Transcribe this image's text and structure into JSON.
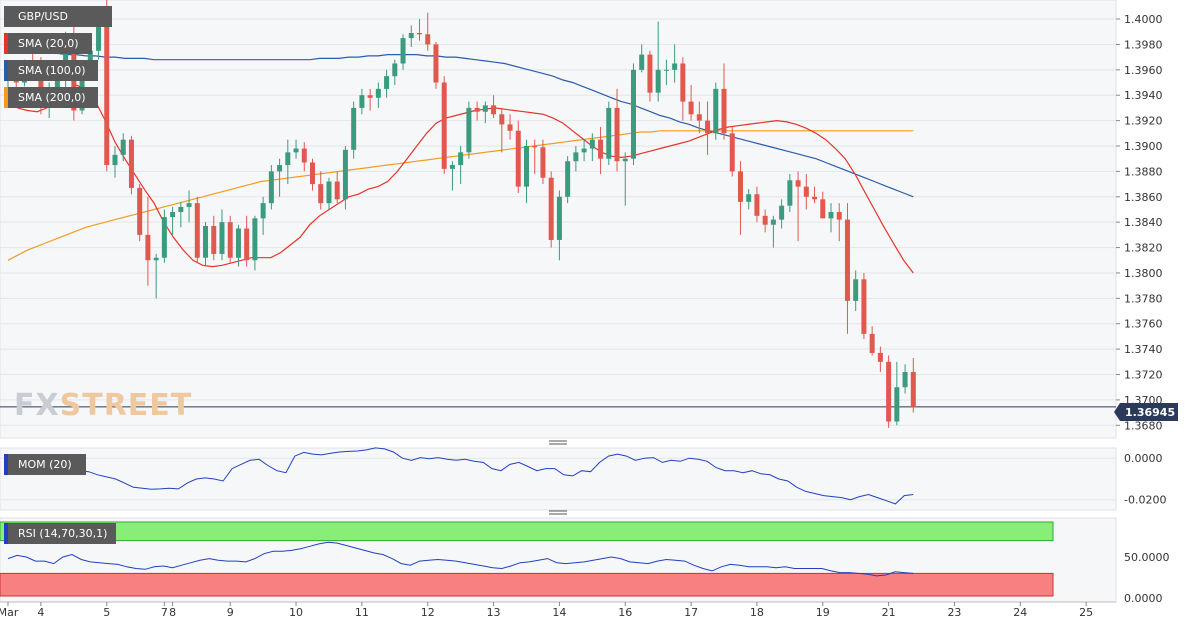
{
  "symbol": "GBP/USD",
  "watermark": {
    "part1": "FX",
    "part2": "STREET"
  },
  "current_price_label": "1.36945",
  "colors": {
    "bull": "#3a9b7e",
    "bear": "#e0584e",
    "sma20": "#e8332b",
    "sma100": "#2a5caa",
    "sma200": "#f39b1e",
    "mom": "#2040c0",
    "rsi": "#2040c0",
    "rsi_upper_band": "#88ee77",
    "rsi_lower_band": "#f88080",
    "price_line": "#2b3a5a",
    "plot_bg": "#f6f7f9",
    "grid": "#e4e6ea"
  },
  "indicators": [
    {
      "name": "SMA (20,0)",
      "color": "#e8332b"
    },
    {
      "name": "SMA (100,0)",
      "color": "#2a5caa"
    },
    {
      "name": "SMA (200,0)",
      "color": "#f39b1e"
    }
  ],
  "mom_panel": {
    "label": "MOM (20)",
    "swatch": "#2040c0",
    "ticks": [
      "0.0000",
      "-0.0200"
    ]
  },
  "rsi_panel": {
    "label": "RSI (14,70,30,1)",
    "swatch": "#2040c0",
    "ticks": [
      "50.0000",
      "0.0000"
    ]
  },
  "chart_data": {
    "type": "candlestick",
    "title": "GBP/USD",
    "y_axis": {
      "ticks": [
        "1.3680",
        "1.3700",
        "1.3720",
        "1.3740",
        "1.3760",
        "1.3780",
        "1.3800",
        "1.3820",
        "1.3840",
        "1.3860",
        "1.3880",
        "1.3900",
        "1.3920",
        "1.3940",
        "1.3960",
        "1.3980",
        "1.4000"
      ],
      "range": [
        1.367,
        1.4015
      ]
    },
    "x_axis": {
      "labels": [
        {
          "label": "Mar",
          "i": -1
        },
        {
          "label": "4",
          "i": 4
        },
        {
          "label": "5",
          "i": 12
        },
        {
          "label": "7",
          "i": 19
        },
        {
          "label": "8",
          "i": 20
        },
        {
          "label": "9",
          "i": 27
        },
        {
          "label": "10",
          "i": 35
        },
        {
          "label": "11",
          "i": 43
        },
        {
          "label": "12",
          "i": 51
        },
        {
          "label": "13",
          "i": 59
        },
        {
          "label": "14",
          "i": 67
        },
        {
          "label": "16",
          "i": 75
        },
        {
          "label": "17",
          "i": 83
        },
        {
          "label": "18",
          "i": 91
        },
        {
          "label": "19",
          "i": 99
        },
        {
          "label": "21",
          "i": 107
        },
        {
          "label": "23",
          "i": 115
        },
        {
          "label": "24",
          "i": 123
        },
        {
          "label": "25",
          "i": 131
        }
      ]
    },
    "current_price": 1.36945,
    "candles": [
      [
        1.3952,
        1.396,
        1.3945,
        1.3955
      ],
      [
        1.3955,
        1.3965,
        1.3946,
        1.395
      ],
      [
        1.395,
        1.3968,
        1.3947,
        1.3965
      ],
      [
        1.3965,
        1.3975,
        1.3957,
        1.3962
      ],
      [
        1.3962,
        1.397,
        1.3925,
        1.393
      ],
      [
        1.393,
        1.395,
        1.3922,
        1.3945
      ],
      [
        1.3945,
        1.3958,
        1.394,
        1.3955
      ],
      [
        1.3955,
        1.399,
        1.3945,
        1.3985
      ],
      [
        1.3985,
        1.3995,
        1.392,
        1.3928
      ],
      [
        1.3928,
        1.3965,
        1.3925,
        1.396
      ],
      [
        1.396,
        1.3985,
        1.3955,
        1.3975
      ],
      [
        1.3975,
        1.3998,
        1.3968,
        1.3995
      ],
      [
        1.3995,
        1.4015,
        1.388,
        1.3885
      ],
      [
        1.3885,
        1.39,
        1.3875,
        1.3893
      ],
      [
        1.3893,
        1.391,
        1.3888,
        1.3905
      ],
      [
        1.3905,
        1.3908,
        1.3862,
        1.3867
      ],
      [
        1.3867,
        1.387,
        1.3825,
        1.383
      ],
      [
        1.383,
        1.386,
        1.379,
        1.381
      ],
      [
        1.381,
        1.3815,
        1.378,
        1.3812
      ],
      [
        1.3812,
        1.385,
        1.3808,
        1.3844
      ],
      [
        1.3844,
        1.3852,
        1.383,
        1.3848
      ],
      [
        1.3848,
        1.3856,
        1.3836,
        1.3852
      ],
      [
        1.3852,
        1.3865,
        1.384,
        1.3855
      ],
      [
        1.3855,
        1.386,
        1.3808,
        1.3812
      ],
      [
        1.3812,
        1.384,
        1.3805,
        1.3837
      ],
      [
        1.3837,
        1.3845,
        1.381,
        1.3815
      ],
      [
        1.3815,
        1.385,
        1.381,
        1.384
      ],
      [
        1.384,
        1.3845,
        1.3808,
        1.3812
      ],
      [
        1.3812,
        1.3838,
        1.3805,
        1.3835
      ],
      [
        1.3835,
        1.3845,
        1.3805,
        1.381
      ],
      [
        1.381,
        1.3845,
        1.3802,
        1.3843
      ],
      [
        1.3843,
        1.386,
        1.383,
        1.3855
      ],
      [
        1.3855,
        1.3885,
        1.385,
        1.388
      ],
      [
        1.388,
        1.389,
        1.386,
        1.3885
      ],
      [
        1.3885,
        1.3905,
        1.387,
        1.3895
      ],
      [
        1.3895,
        1.3905,
        1.389,
        1.3898
      ],
      [
        1.3898,
        1.3903,
        1.388,
        1.3887
      ],
      [
        1.3887,
        1.389,
        1.3865,
        1.387
      ],
      [
        1.387,
        1.388,
        1.385,
        1.3855
      ],
      [
        1.3855,
        1.3875,
        1.385,
        1.3872
      ],
      [
        1.3872,
        1.388,
        1.3855,
        1.3858
      ],
      [
        1.3858,
        1.39,
        1.385,
        1.3897
      ],
      [
        1.3897,
        1.3935,
        1.389,
        1.393
      ],
      [
        1.393,
        1.3945,
        1.3925,
        1.394
      ],
      [
        1.394,
        1.3945,
        1.3928,
        1.3938
      ],
      [
        1.3938,
        1.395,
        1.393,
        1.3945
      ],
      [
        1.3945,
        1.396,
        1.3938,
        1.3955
      ],
      [
        1.3955,
        1.3968,
        1.3948,
        1.3965
      ],
      [
        1.3965,
        1.3988,
        1.396,
        1.3985
      ],
      [
        1.3985,
        1.3995,
        1.3978,
        1.3989
      ],
      [
        1.3989,
        1.4,
        1.3983,
        1.3988
      ],
      [
        1.3988,
        1.4005,
        1.3975,
        1.398
      ],
      [
        1.398,
        1.3982,
        1.3945,
        1.395
      ],
      [
        1.395,
        1.3955,
        1.3878,
        1.3882
      ],
      [
        1.3882,
        1.3888,
        1.3865,
        1.3885
      ],
      [
        1.3885,
        1.39,
        1.387,
        1.3895
      ],
      [
        1.3895,
        1.3935,
        1.389,
        1.393
      ],
      [
        1.393,
        1.3935,
        1.392,
        1.3927
      ],
      [
        1.3927,
        1.3935,
        1.3918,
        1.3932
      ],
      [
        1.3932,
        1.394,
        1.3922,
        1.3925
      ],
      [
        1.3925,
        1.393,
        1.3895,
        1.3917
      ],
      [
        1.3917,
        1.3925,
        1.3905,
        1.3912
      ],
      [
        1.3912,
        1.392,
        1.3863,
        1.3868
      ],
      [
        1.3868,
        1.3905,
        1.3855,
        1.39
      ],
      [
        1.39,
        1.3905,
        1.3878,
        1.3899
      ],
      [
        1.3899,
        1.3905,
        1.387,
        1.3875
      ],
      [
        1.3875,
        1.388,
        1.382,
        1.3826
      ],
      [
        1.3826,
        1.3865,
        1.381,
        1.386
      ],
      [
        1.386,
        1.3892,
        1.3855,
        1.3888
      ],
      [
        1.3888,
        1.39,
        1.388,
        1.3895
      ],
      [
        1.3895,
        1.3905,
        1.3888,
        1.3898
      ],
      [
        1.3898,
        1.391,
        1.3888,
        1.3905
      ],
      [
        1.3905,
        1.3915,
        1.3878,
        1.389
      ],
      [
        1.389,
        1.3935,
        1.3885,
        1.393
      ],
      [
        1.393,
        1.3945,
        1.388,
        1.3888
      ],
      [
        1.3888,
        1.3895,
        1.3853,
        1.389
      ],
      [
        1.389,
        1.3965,
        1.3885,
        1.396
      ],
      [
        1.396,
        1.398,
        1.3958,
        1.3972
      ],
      [
        1.3972,
        1.3975,
        1.3935,
        1.3942
      ],
      [
        1.3942,
        1.3998,
        1.3935,
        1.396
      ],
      [
        1.396,
        1.3968,
        1.3948,
        1.396
      ],
      [
        1.396,
        1.398,
        1.395,
        1.3965
      ],
      [
        1.3965,
        1.397,
        1.392,
        1.3935
      ],
      [
        1.3935,
        1.3948,
        1.392,
        1.3925
      ],
      [
        1.3925,
        1.3935,
        1.391,
        1.392
      ],
      [
        1.392,
        1.3935,
        1.3893,
        1.391
      ],
      [
        1.391,
        1.395,
        1.3905,
        1.3945
      ],
      [
        1.3945,
        1.3965,
        1.3905,
        1.391
      ],
      [
        1.391,
        1.3915,
        1.3876,
        1.388
      ],
      [
        1.388,
        1.3888,
        1.383,
        1.3856
      ],
      [
        1.3856,
        1.3866,
        1.385,
        1.3862
      ],
      [
        1.3862,
        1.3868,
        1.384,
        1.3845
      ],
      [
        1.3845,
        1.385,
        1.3832,
        1.3838
      ],
      [
        1.3838,
        1.3845,
        1.382,
        1.3842
      ],
      [
        1.3842,
        1.3858,
        1.3835,
        1.3853
      ],
      [
        1.3853,
        1.3878,
        1.3848,
        1.3873
      ],
      [
        1.3873,
        1.388,
        1.3825,
        1.3868
      ],
      [
        1.3868,
        1.3878,
        1.385,
        1.386
      ],
      [
        1.386,
        1.3868,
        1.3855,
        1.3858
      ],
      [
        1.3858,
        1.3864,
        1.3845,
        1.3843
      ],
      [
        1.3843,
        1.3855,
        1.3832,
        1.3848
      ],
      [
        1.3848,
        1.3855,
        1.3825,
        1.3842
      ],
      [
        1.3842,
        1.3855,
        1.3752,
        1.3778
      ],
      [
        1.3778,
        1.3802,
        1.377,
        1.3795
      ],
      [
        1.3795,
        1.38,
        1.3748,
        1.3752
      ],
      [
        1.3752,
        1.3758,
        1.3735,
        1.3737
      ],
      [
        1.3737,
        1.3742,
        1.3722,
        1.373
      ],
      [
        1.373,
        1.3735,
        1.3678,
        1.3683
      ],
      [
        1.3683,
        1.373,
        1.368,
        1.371
      ],
      [
        1.371,
        1.3728,
        1.3705,
        1.3722
      ],
      [
        1.3722,
        1.3733,
        1.369,
        1.3694
      ]
    ],
    "sma20": [
      1.3935,
      1.393,
      1.3928,
      1.3927,
      1.393,
      1.3935,
      1.3942,
      1.3948,
      1.3945,
      1.3935,
      1.392,
      1.3903,
      1.389,
      1.3878,
      1.3866,
      1.3855,
      1.384,
      1.3828,
      1.3818,
      1.381,
      1.3806,
      1.3805,
      1.3806,
      1.3808,
      1.381,
      1.3812,
      1.3812,
      1.3812,
      1.3816,
      1.3822,
      1.3828,
      1.3838,
      1.3845,
      1.385,
      1.3855,
      1.386,
      1.3862,
      1.3866,
      1.3868,
      1.3872,
      1.388,
      1.389,
      1.39,
      1.391,
      1.3918,
      1.3922,
      1.3924,
      1.3926,
      1.3928,
      1.3929,
      1.393,
      1.3929,
      1.3928,
      1.3927,
      1.3926,
      1.3925,
      1.3922,
      1.3918,
      1.3912,
      1.3906,
      1.39,
      1.3895,
      1.3892,
      1.3891,
      1.3892,
      1.3894,
      1.3896,
      1.3898,
      1.39,
      1.3902,
      1.3904,
      1.3907,
      1.391,
      1.3913,
      1.3915,
      1.3916,
      1.3917,
      1.3918,
      1.3919,
      1.392,
      1.3919,
      1.3917,
      1.3914,
      1.391,
      1.3905,
      1.3898,
      1.389,
      1.3878,
      1.3864,
      1.385,
      1.3836,
      1.3823,
      1.381,
      1.38
    ],
    "sma100": [
      1.3975,
      1.3975,
      1.3974,
      1.3974,
      1.3973,
      1.3973,
      1.3972,
      1.3972,
      1.3971,
      1.3971,
      1.397,
      1.397,
      1.3969,
      1.3969,
      1.3969,
      1.3968,
      1.3968,
      1.3968,
      1.3968,
      1.3968,
      1.3968,
      1.3968,
      1.3968,
      1.3968,
      1.3968,
      1.3968,
      1.3968,
      1.3968,
      1.3968,
      1.3968,
      1.3968,
      1.3968,
      1.3969,
      1.3969,
      1.3969,
      1.397,
      1.397,
      1.3971,
      1.3971,
      1.3972,
      1.3972,
      1.3972,
      1.3972,
      1.3971,
      1.3971,
      1.397,
      1.397,
      1.3969,
      1.3968,
      1.3967,
      1.3966,
      1.3965,
      1.3963,
      1.3961,
      1.3959,
      1.3957,
      1.3955,
      1.3952,
      1.395,
      1.3947,
      1.3944,
      1.3941,
      1.3938,
      1.3935,
      1.3933,
      1.393,
      1.3927,
      1.3924,
      1.3922,
      1.3919,
      1.3917,
      1.3914,
      1.3912,
      1.391,
      1.3908,
      1.3906,
      1.3904,
      1.3902,
      1.39,
      1.3898,
      1.3896,
      1.3894,
      1.3892,
      1.389,
      1.3887,
      1.3884,
      1.3881,
      1.3878,
      1.3875,
      1.3872,
      1.3869,
      1.3866,
      1.3863,
      1.386
    ],
    "sma200": [
      1.381,
      1.3814,
      1.3818,
      1.3821,
      1.3824,
      1.3827,
      1.383,
      1.3833,
      1.3836,
      1.3838,
      1.384,
      1.3842,
      1.3844,
      1.3846,
      1.3848,
      1.385,
      1.3852,
      1.3854,
      1.3856,
      1.3858,
      1.386,
      1.3862,
      1.3864,
      1.3866,
      1.3868,
      1.387,
      1.3872,
      1.3873,
      1.3874,
      1.3875,
      1.3876,
      1.3877,
      1.3878,
      1.3879,
      1.388,
      1.3881,
      1.3882,
      1.3883,
      1.3884,
      1.3885,
      1.3886,
      1.3887,
      1.3888,
      1.3889,
      1.389,
      1.3891,
      1.3892,
      1.3893,
      1.3894,
      1.3895,
      1.3896,
      1.3897,
      1.3898,
      1.3899,
      1.39,
      1.3901,
      1.3902,
      1.3903,
      1.3904,
      1.3905,
      1.3906,
      1.3907,
      1.3908,
      1.3909,
      1.391,
      1.3911,
      1.3911,
      1.3912,
      1.3912,
      1.3912,
      1.3912,
      1.3912,
      1.3912,
      1.3912,
      1.3912,
      1.3912,
      1.3912,
      1.3912,
      1.3912,
      1.3912,
      1.3912,
      1.3912,
      1.3912,
      1.3912,
      1.3912,
      1.3912,
      1.3912,
      1.3912,
      1.3912,
      1.3912,
      1.3912,
      1.3912,
      1.3912,
      1.3912
    ],
    "mom_range": [
      -0.024,
      0.003
    ],
    "mom": [
      -0.0003,
      -0.0015,
      -0.0018,
      -0.0022,
      -0.0018,
      -0.003,
      -0.002,
      -0.005,
      -0.006,
      -0.0065,
      -0.008,
      -0.009,
      -0.01,
      -0.012,
      -0.014,
      -0.0145,
      -0.015,
      -0.0148,
      -0.0145,
      -0.0148,
      -0.012,
      -0.01,
      -0.0095,
      -0.01,
      -0.011,
      -0.005,
      -0.003,
      -0.001,
      -0.0005,
      -0.0035,
      -0.006,
      -0.007,
      0.001,
      0.0028,
      0.002,
      0.0016,
      0.0024,
      0.003,
      0.0033,
      0.0035,
      0.004,
      0.005,
      0.0045,
      0.003,
      0.0,
      -0.001,
      0.0003,
      -0.0003,
      0.0003,
      -0.0005,
      -0.001,
      -0.0005,
      -0.0015,
      -0.002,
      -0.005,
      -0.006,
      -0.003,
      -0.002,
      -0.004,
      -0.006,
      -0.005,
      -0.005,
      -0.008,
      -0.0085,
      -0.006,
      -0.0065,
      -0.002,
      0.001,
      0.002,
      0.001,
      -0.001,
      0.0,
      0.0003,
      -0.002,
      -0.001,
      -0.0015,
      0.0,
      -0.0005,
      -0.0015,
      -0.0045,
      -0.006,
      -0.006,
      -0.007,
      -0.006,
      -0.0075,
      -0.008,
      -0.01,
      -0.011,
      -0.014,
      -0.016,
      -0.017,
      -0.018,
      -0.0185,
      -0.019,
      -0.02,
      -0.0185,
      -0.0175,
      -0.019,
      -0.0205,
      -0.022,
      -0.018,
      -0.0175
    ],
    "rsi_range": [
      0,
      100
    ],
    "rsi_overbought": 70,
    "rsi_oversold": 30,
    "rsi": [
      48,
      52,
      50,
      45,
      45,
      42,
      50,
      53,
      47,
      44,
      43,
      42,
      41,
      38,
      36,
      35,
      38,
      39,
      37,
      40,
      43,
      46,
      48,
      46,
      45,
      45,
      44,
      48,
      54,
      57,
      57,
      58,
      60,
      63,
      66,
      68,
      67,
      64,
      61,
      58,
      55,
      53,
      48,
      42,
      40,
      45,
      46,
      47,
      46,
      45,
      43,
      41,
      39,
      37,
      36,
      39,
      43,
      44,
      46,
      48,
      43,
      42,
      43,
      44,
      46,
      48,
      50,
      48,
      44,
      43,
      42,
      45,
      47,
      46,
      45,
      40,
      36,
      33,
      38,
      41,
      40,
      38,
      38,
      38,
      37,
      38,
      36,
      36,
      36,
      36,
      33,
      31,
      31,
      30,
      29,
      27,
      28,
      32,
      31,
      30
    ]
  }
}
